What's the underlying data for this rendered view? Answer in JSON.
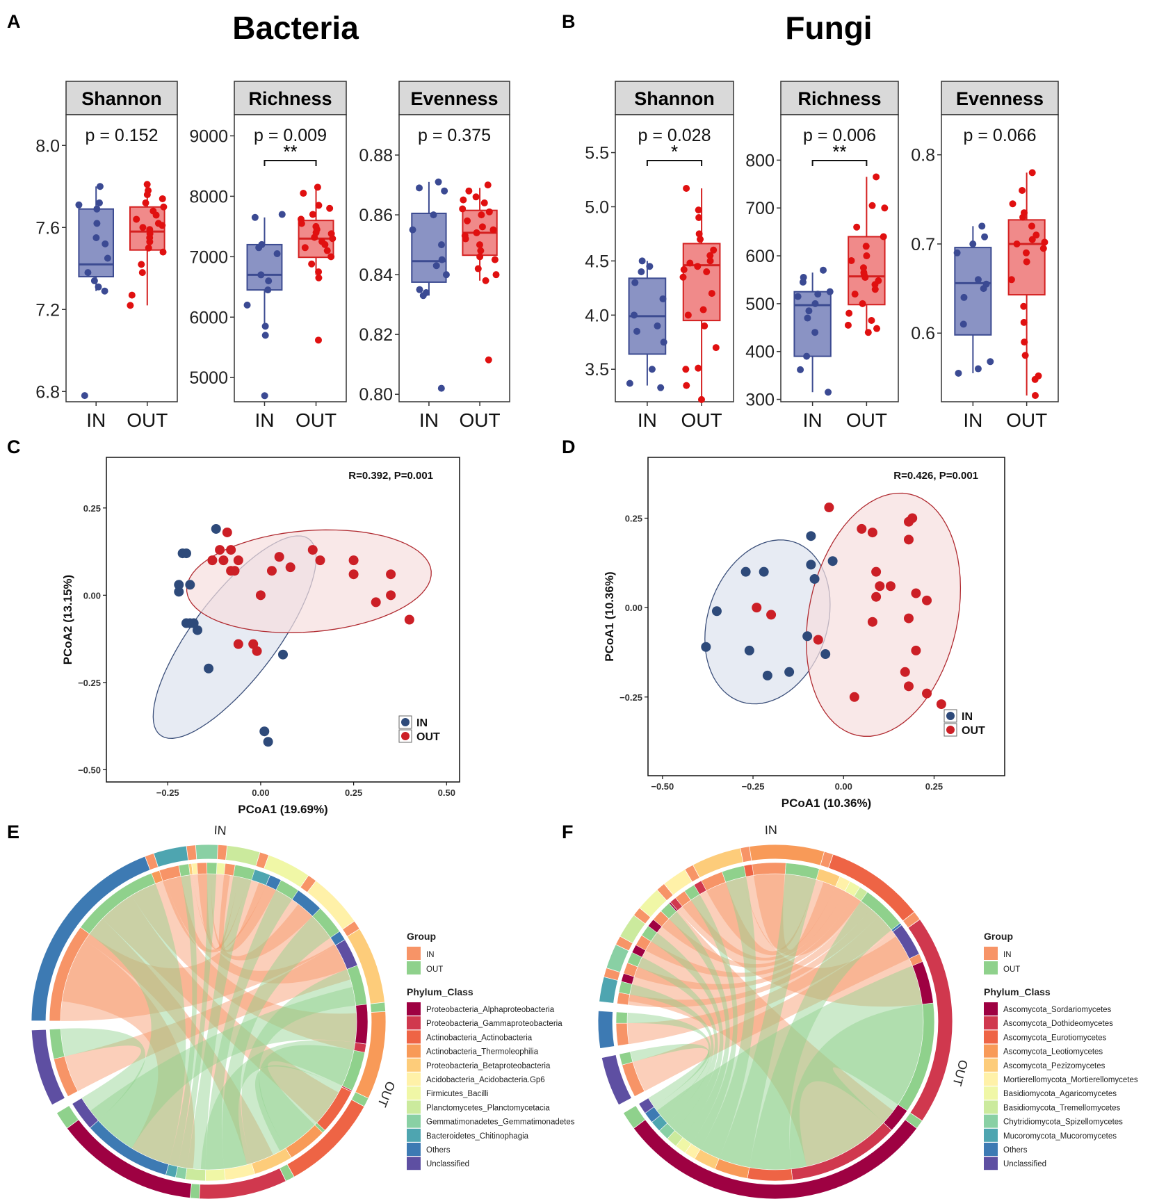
{
  "colors": {
    "in_box": "#8a93c4",
    "in_line": "#3c4b91",
    "in_point": "#3b4a93",
    "out_box": "#f08a8a",
    "out_line": "#d42020",
    "out_point": "#e01010",
    "in_ellipse_fill": "#dde3ee",
    "out_ellipse_fill": "#f7dede",
    "pcoa_in_point": "#2e4a7a",
    "pcoa_out_point": "#cc1f26",
    "chord_in": "#f79467",
    "chord_out": "#8fd18c"
  },
  "panels": {
    "A": {
      "label": "A",
      "title": "Bacteria"
    },
    "B": {
      "label": "B",
      "title": "Fungi"
    },
    "C": {
      "label": "C"
    },
    "D": {
      "label": "D"
    },
    "E": {
      "label": "E"
    },
    "F": {
      "label": "F"
    }
  },
  "chart_data": [
    {
      "type": "box",
      "panel": "A",
      "metric": "Shannon",
      "p_text": "p = 0.152",
      "signif": "",
      "categories": [
        "IN",
        "OUT"
      ],
      "ylim": [
        6.75,
        8.15
      ],
      "yticks": [
        6.8,
        7.2,
        7.6,
        8.0
      ],
      "ytick_labels": [
        "6.8",
        "7.2",
        "7.6",
        "8.0"
      ],
      "boxes": [
        {
          "q1": 7.36,
          "median": 7.42,
          "q3": 7.69,
          "wlo": 7.29,
          "whi": 7.8
        },
        {
          "q1": 7.49,
          "median": 7.58,
          "q3": 7.7,
          "wlo": 7.22,
          "whi": 7.81
        }
      ],
      "points": [
        [
          6.78,
          7.29,
          7.31,
          7.34,
          7.38,
          7.45,
          7.52,
          7.55,
          7.62,
          7.69,
          7.71,
          7.72,
          7.8
        ],
        [
          7.22,
          7.27,
          7.38,
          7.42,
          7.48,
          7.5,
          7.53,
          7.55,
          7.57,
          7.59,
          7.6,
          7.61,
          7.62,
          7.64,
          7.66,
          7.68,
          7.7,
          7.72,
          7.74,
          7.76,
          7.78,
          7.81
        ]
      ]
    },
    {
      "type": "box",
      "panel": "A",
      "metric": "Richness",
      "p_text": "p = 0.009",
      "signif": "**",
      "categories": [
        "IN",
        "OUT"
      ],
      "ylim": [
        4600,
        9350
      ],
      "yticks": [
        5000,
        6000,
        7000,
        8000,
        9000
      ],
      "ytick_labels": [
        "5000",
        "6000",
        "7000",
        "8000",
        "9000"
      ],
      "boxes": [
        {
          "q1": 6450,
          "median": 6700,
          "q3": 7200,
          "wlo": 5800,
          "whi": 7650
        },
        {
          "q1": 6990,
          "median": 7300,
          "q3": 7600,
          "wlo": 6700,
          "whi": 8150
        }
      ],
      "points": [
        [
          4700,
          5700,
          5850,
          6200,
          6450,
          6600,
          6700,
          7050,
          7150,
          7200,
          7650,
          7700
        ],
        [
          5620,
          6650,
          6750,
          6880,
          7000,
          7100,
          7150,
          7200,
          7250,
          7300,
          7320,
          7380,
          7400,
          7450,
          7500,
          7550,
          7620,
          7700,
          7800,
          7850,
          8050,
          8150
        ]
      ]
    },
    {
      "type": "box",
      "panel": "A",
      "metric": "Evenness",
      "p_text": "p = 0.375",
      "signif": "",
      "categories": [
        "IN",
        "OUT"
      ],
      "ylim": [
        0.7975,
        0.8935
      ],
      "yticks": [
        0.8,
        0.82,
        0.84,
        0.86,
        0.88
      ],
      "ytick_labels": [
        "0.80",
        "0.82",
        "0.84",
        "0.86",
        "0.88"
      ],
      "boxes": [
        {
          "q1": 0.8375,
          "median": 0.8445,
          "q3": 0.8605,
          "wlo": 0.833,
          "whi": 0.871
        },
        {
          "q1": 0.8465,
          "median": 0.854,
          "q3": 0.8615,
          "wlo": 0.838,
          "whi": 0.869
        }
      ],
      "points": [
        [
          0.802,
          0.833,
          0.834,
          0.835,
          0.84,
          0.843,
          0.845,
          0.85,
          0.855,
          0.86,
          0.868,
          0.869,
          0.871
        ],
        [
          0.8115,
          0.838,
          0.84,
          0.842,
          0.845,
          0.846,
          0.848,
          0.85,
          0.852,
          0.853,
          0.854,
          0.855,
          0.856,
          0.858,
          0.86,
          0.861,
          0.862,
          0.864,
          0.865,
          0.866,
          0.868,
          0.87
        ]
      ]
    },
    {
      "type": "box",
      "panel": "B",
      "metric": "Shannon",
      "p_text": "p = 0.028",
      "signif": "*",
      "categories": [
        "IN",
        "OUT"
      ],
      "ylim": [
        3.2,
        5.85
      ],
      "yticks": [
        3.5,
        4.0,
        4.5,
        5.0,
        5.5
      ],
      "ytick_labels": [
        "3.5",
        "4.0",
        "4.5",
        "5.0",
        "5.5"
      ],
      "boxes": [
        {
          "q1": 3.64,
          "median": 3.99,
          "q3": 4.34,
          "wlo": 3.35,
          "whi": 4.5
        },
        {
          "q1": 3.95,
          "median": 4.46,
          "q3": 4.66,
          "wlo": 3.22,
          "whi": 5.17
        }
      ],
      "points": [
        [
          3.33,
          3.37,
          3.5,
          3.75,
          3.85,
          3.9,
          4.0,
          4.15,
          4.3,
          4.4,
          4.45,
          4.5
        ],
        [
          3.22,
          3.35,
          3.5,
          3.51,
          3.7,
          3.9,
          4.0,
          4.05,
          4.2,
          4.35,
          4.4,
          4.42,
          4.45,
          4.48,
          4.5,
          4.55,
          4.6,
          4.7,
          4.75,
          4.9,
          4.97,
          5.17
        ]
      ]
    },
    {
      "type": "box",
      "panel": "B",
      "metric": "Richness",
      "p_text": "p = 0.006",
      "signif": "**",
      "categories": [
        "IN",
        "OUT"
      ],
      "ylim": [
        295,
        895
      ],
      "yticks": [
        300,
        400,
        500,
        600,
        700,
        800
      ],
      "ytick_labels": [
        "300",
        "400",
        "500",
        "600",
        "700",
        "800"
      ],
      "boxes": [
        {
          "q1": 390,
          "median": 497,
          "q3": 525,
          "wlo": 315,
          "whi": 565
        },
        {
          "q1": 498,
          "median": 557,
          "q3": 640,
          "wlo": 445,
          "whi": 765
        }
      ],
      "points": [
        [
          315,
          362,
          390,
          440,
          470,
          485,
          500,
          515,
          520,
          525,
          545,
          555,
          570
        ],
        [
          440,
          448,
          455,
          465,
          480,
          500,
          520,
          530,
          540,
          548,
          555,
          560,
          565,
          575,
          590,
          600,
          620,
          640,
          660,
          700,
          705,
          765
        ]
      ]
    },
    {
      "type": "box",
      "panel": "B",
      "metric": "Evenness",
      "p_text": "p = 0.066",
      "signif": "",
      "categories": [
        "IN",
        "OUT"
      ],
      "ylim": [
        0.523,
        0.845
      ],
      "yticks": [
        0.6,
        0.7,
        0.8
      ],
      "ytick_labels": [
        "0.6",
        "0.7",
        "0.8"
      ],
      "boxes": [
        {
          "q1": 0.598,
          "median": 0.656,
          "q3": 0.696,
          "wlo": 0.555,
          "whi": 0.72
        },
        {
          "q1": 0.643,
          "median": 0.7,
          "q3": 0.727,
          "wlo": 0.53,
          "whi": 0.78
        }
      ],
      "points": [
        [
          0.555,
          0.56,
          0.568,
          0.61,
          0.64,
          0.65,
          0.655,
          0.66,
          0.69,
          0.7,
          0.708,
          0.72
        ],
        [
          0.53,
          0.548,
          0.552,
          0.575,
          0.59,
          0.612,
          0.63,
          0.66,
          0.68,
          0.69,
          0.695,
          0.7,
          0.702,
          0.705,
          0.71,
          0.72,
          0.73,
          0.735,
          0.745,
          0.76,
          0.78
        ]
      ]
    },
    {
      "type": "scatter",
      "panel": "C",
      "stat_text": "R=0.392, P=0.001",
      "xlabel": "PCoA1 (19.69%)",
      "ylabel": "PCoA2 (13.15%)",
      "xlim": [
        -0.415,
        0.535
      ],
      "ylim": [
        -0.535,
        0.395
      ],
      "xticks": [
        -0.25,
        0,
        0.25,
        0.5
      ],
      "xtick_labels": [
        "−0.25",
        "0.00",
        "0.25",
        "0.50"
      ],
      "yticks": [
        -0.5,
        -0.25,
        0,
        0.25
      ],
      "ytick_labels": [
        "−0.50",
        "−0.25",
        "0.00",
        "0.25"
      ],
      "legend": [
        "IN",
        "OUT"
      ],
      "in_points": [
        [
          -0.12,
          0.19
        ],
        [
          -0.21,
          0.12
        ],
        [
          -0.2,
          0.12
        ],
        [
          -0.22,
          0.03
        ],
        [
          -0.22,
          0.01
        ],
        [
          -0.19,
          0.03
        ],
        [
          -0.19,
          -0.08
        ],
        [
          -0.2,
          -0.08
        ],
        [
          -0.18,
          -0.08
        ],
        [
          -0.17,
          -0.1
        ],
        [
          -0.14,
          -0.21
        ],
        [
          0.06,
          -0.17
        ],
        [
          0.01,
          -0.39
        ],
        [
          0.02,
          -0.42
        ]
      ],
      "out_points": [
        [
          -0.09,
          0.18
        ],
        [
          -0.11,
          0.13
        ],
        [
          -0.08,
          0.13
        ],
        [
          -0.06,
          0.1
        ],
        [
          -0.13,
          0.1
        ],
        [
          -0.1,
          0.1
        ],
        [
          -0.08,
          0.07
        ],
        [
          -0.07,
          0.07
        ],
        [
          0.03,
          0.07
        ],
        [
          0.05,
          0.11
        ],
        [
          0.08,
          0.08
        ],
        [
          0.14,
          0.13
        ],
        [
          0.16,
          0.1
        ],
        [
          0.25,
          0.1
        ],
        [
          0.25,
          0.06
        ],
        [
          0.35,
          0.06
        ],
        [
          0.35,
          0.0
        ],
        [
          0.31,
          -0.02
        ],
        [
          0.4,
          -0.07
        ],
        [
          0.0,
          0.0
        ],
        [
          -0.06,
          -0.14
        ],
        [
          -0.02,
          -0.14
        ],
        [
          -0.01,
          -0.16
        ]
      ],
      "ellipses": [
        {
          "group": "IN",
          "cx": -0.07,
          "cy": -0.12,
          "rx": 0.345,
          "ry": 0.115,
          "angle_deg": 55
        },
        {
          "group": "OUT",
          "cx": 0.13,
          "cy": 0.04,
          "rx": 0.33,
          "ry": 0.145,
          "angle_deg": 5
        }
      ]
    },
    {
      "type": "scatter",
      "panel": "D",
      "stat_text": "R=0.426, P=0.001",
      "xlabel": "PCoA1 (10.36%)",
      "ylabel": "PCoA1 (10.36%)",
      "xlim": [
        -0.54,
        0.445
      ],
      "ylim": [
        -0.47,
        0.42
      ],
      "xticks": [
        -0.5,
        -0.25,
        0,
        0.25
      ],
      "xtick_labels": [
        "−0.50",
        "−0.25",
        "0.00",
        "0.25"
      ],
      "yticks": [
        -0.25,
        0,
        0.25
      ],
      "ytick_labels": [
        "−0.25",
        "0.00",
        "0.25"
      ],
      "legend": [
        "IN",
        "OUT"
      ],
      "in_points": [
        [
          -0.09,
          0.2
        ],
        [
          -0.09,
          0.12
        ],
        [
          -0.03,
          0.13
        ],
        [
          -0.08,
          0.08
        ],
        [
          -0.27,
          0.1
        ],
        [
          -0.22,
          0.1
        ],
        [
          -0.35,
          -0.01
        ],
        [
          -0.38,
          -0.11
        ],
        [
          -0.26,
          -0.12
        ],
        [
          -0.21,
          -0.19
        ],
        [
          -0.15,
          -0.18
        ],
        [
          -0.1,
          -0.08
        ],
        [
          -0.05,
          -0.13
        ]
      ],
      "out_points": [
        [
          -0.24,
          0.0
        ],
        [
          -0.2,
          -0.02
        ],
        [
          -0.04,
          0.28
        ],
        [
          -0.07,
          -0.09
        ],
        [
          0.05,
          0.22
        ],
        [
          0.08,
          0.21
        ],
        [
          0.18,
          0.24
        ],
        [
          0.19,
          0.25
        ],
        [
          0.18,
          0.19
        ],
        [
          0.09,
          0.1
        ],
        [
          0.1,
          0.06
        ],
        [
          0.13,
          0.06
        ],
        [
          0.09,
          0.03
        ],
        [
          0.08,
          -0.04
        ],
        [
          0.2,
          0.04
        ],
        [
          0.23,
          0.02
        ],
        [
          0.18,
          -0.03
        ],
        [
          0.2,
          -0.12
        ],
        [
          0.17,
          -0.18
        ],
        [
          0.18,
          -0.22
        ],
        [
          0.23,
          -0.24
        ],
        [
          0.27,
          -0.27
        ],
        [
          0.03,
          -0.25
        ]
      ],
      "ellipses": [
        {
          "group": "IN",
          "cx": -0.21,
          "cy": -0.04,
          "rx": 0.235,
          "ry": 0.165,
          "angle_deg": 72
        },
        {
          "group": "OUT",
          "cx": 0.11,
          "cy": -0.02,
          "rx": 0.345,
          "ry": 0.205,
          "angle_deg": 78
        }
      ]
    },
    {
      "type": "chord",
      "panel": "E",
      "groups": [
        "IN",
        "OUT"
      ],
      "legend_group_title": "Group",
      "legend_taxa_title": "Phylum_Class",
      "taxa": [
        "Proteobacteria_Alphaproteobacteria",
        "Proteobacteria_Gammaproteobacteria",
        "Actinobacteria_Actinobacteria",
        "Actinobacteria_Thermoleophilia",
        "Proteobacteria_Betaproteobacteria",
        "Acidobacteria_Acidobacteria.Gp6",
        "Firmicutes_Bacilli",
        "Planctomycetes_Planctomycetacia",
        "Gemmatimonadetes_Gemmatimonadetes",
        "Bacteroidetes_Chitinophagia",
        "Others",
        "Unclassified"
      ],
      "taxa_colors": [
        "#9e0142",
        "#d0384e",
        "#ee6445",
        "#f89a58",
        "#fdcc7a",
        "#fff1a8",
        "#f0f7a6",
        "#cbea9d",
        "#89d0a4",
        "#4ea5b0",
        "#3d7ab3",
        "#5e4fa2"
      ],
      "in_values": [
        7,
        3,
        4,
        4,
        3,
        2,
        2,
        1,
        1,
        2,
        10,
        4
      ],
      "out_values": [
        6,
        5,
        5,
        4,
        4,
        3,
        2,
        2,
        1,
        1,
        9,
        3
      ]
    },
    {
      "type": "chord",
      "panel": "F",
      "groups": [
        "IN",
        "OUT"
      ],
      "legend_group_title": "Group",
      "legend_taxa_title": "Phylum_Class",
      "taxa": [
        "Ascomycota_Sordariomycetes",
        "Ascomycota_Dothideomycetes",
        "Ascomycota_Eurotiomycetes",
        "Ascomycota_Leotiomycetes",
        "Ascomycota_Pezizomycetes",
        "Mortierellomycota_Mortierellomycetes",
        "Basidiomycota_Agaricomycetes",
        "Basidiomycota_Tremellomycetes",
        "Chytridiomycota_Spizellomycetes",
        "Mucoromycota_Mucoromycetes",
        "Others",
        "Unclassified"
      ],
      "taxa_colors": [
        "#9e0142",
        "#d0384e",
        "#ee6445",
        "#f89a58",
        "#fdcc7a",
        "#fff1a8",
        "#f0f7a6",
        "#cbea9d",
        "#89d0a4",
        "#4ea5b0",
        "#3d7ab3",
        "#5e4fa2"
      ],
      "in_values": [
        10,
        7,
        4,
        3,
        2,
        1,
        1,
        1,
        1,
        1,
        2,
        3
      ],
      "out_values": [
        16,
        10,
        4,
        3,
        2,
        1,
        1,
        1,
        1,
        1,
        1,
        1
      ]
    }
  ]
}
